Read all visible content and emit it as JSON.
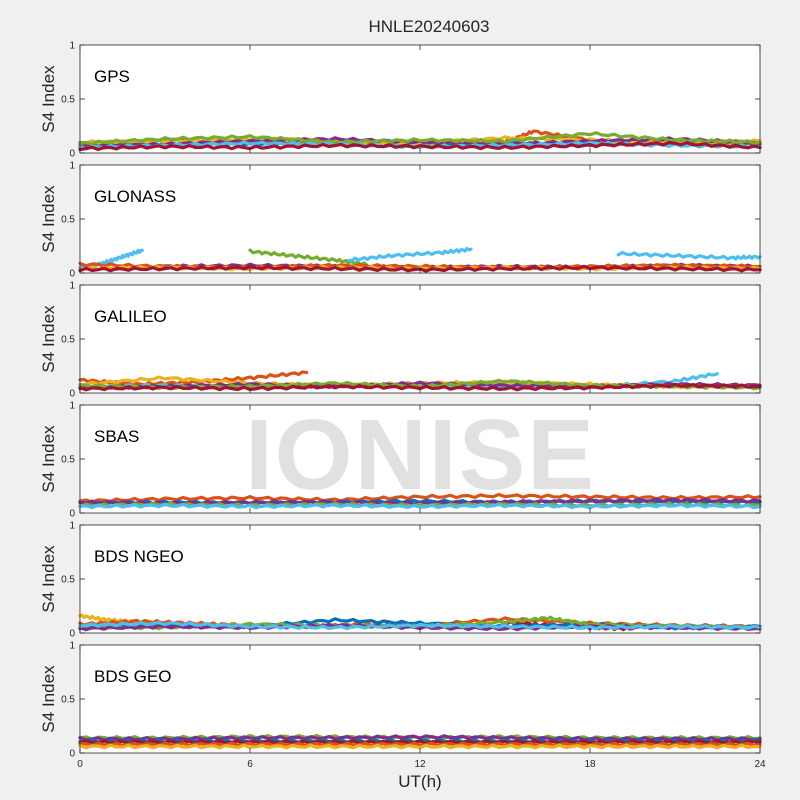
{
  "title": "HNLE20240603",
  "watermark": "IONISE",
  "chart_data": {
    "type": "line",
    "xlabel": "UT(h)",
    "ylabel": "S4 Index",
    "xlim": [
      0,
      24
    ],
    "ylim": [
      0,
      1
    ],
    "xticks": [
      "0",
      "6",
      "12",
      "18",
      "24"
    ],
    "yticks": [
      "0",
      "0.5",
      "1"
    ],
    "grid": false,
    "panels": [
      {
        "label": "GPS",
        "series": [
          {
            "color": "#0072bd",
            "x": [
              0,
              3,
              6,
              9,
              12,
              15,
              18,
              21,
              24
            ],
            "y": [
              0.07,
              0.09,
              0.08,
              0.1,
              0.07,
              0.09,
              0.08,
              0.1,
              0.08
            ]
          },
          {
            "color": "#d95319",
            "x": [
              0,
              3,
              6,
              9,
              12,
              15,
              16,
              18,
              21,
              24
            ],
            "y": [
              0.08,
              0.12,
              0.1,
              0.09,
              0.11,
              0.1,
              0.2,
              0.12,
              0.09,
              0.1
            ]
          },
          {
            "color": "#edb120",
            "x": [
              0,
              3,
              6,
              9,
              12,
              15,
              18,
              21,
              24
            ],
            "y": [
              0.1,
              0.11,
              0.13,
              0.12,
              0.09,
              0.14,
              0.12,
              0.1,
              0.11
            ]
          },
          {
            "color": "#7e2f8e",
            "x": [
              0,
              3,
              6,
              9,
              12,
              15,
              18,
              21,
              24
            ],
            "y": [
              0.06,
              0.08,
              0.11,
              0.13,
              0.1,
              0.08,
              0.11,
              0.13,
              0.09
            ]
          },
          {
            "color": "#77ac30",
            "x": [
              0,
              3,
              6,
              9,
              12,
              15,
              18,
              21,
              24
            ],
            "y": [
              0.09,
              0.13,
              0.15,
              0.1,
              0.12,
              0.11,
              0.18,
              0.12,
              0.1
            ]
          },
          {
            "color": "#4dbeee",
            "x": [
              0,
              3,
              6,
              9,
              12,
              15,
              18,
              21,
              24
            ],
            "y": [
              0.05,
              0.07,
              0.09,
              0.08,
              0.06,
              0.07,
              0.09,
              0.07,
              0.06
            ]
          },
          {
            "color": "#a2142f",
            "x": [
              0,
              3,
              6,
              9,
              12,
              15,
              18,
              21,
              24
            ],
            "y": [
              0.04,
              0.06,
              0.05,
              0.07,
              0.06,
              0.05,
              0.07,
              0.09,
              0.05
            ]
          }
        ]
      },
      {
        "label": "GLONASS",
        "series": [
          {
            "color": "#4dbeee",
            "x": [
              0,
              0.8,
              1.5,
              2.2
            ],
            "y": [
              0.05,
              0.09,
              0.15,
              0.21
            ]
          },
          {
            "color": "#77ac30",
            "x": [
              6,
              7.5,
              9,
              10.1
            ],
            "y": [
              0.2,
              0.16,
              0.12,
              0.08
            ]
          },
          {
            "color": "#4dbeee",
            "x": [
              9.5,
              11,
              12.8,
              13.8
            ],
            "y": [
              0.12,
              0.16,
              0.19,
              0.22
            ]
          },
          {
            "color": "#4dbeee",
            "x": [
              19,
              21,
              23,
              24
            ],
            "y": [
              0.18,
              0.16,
              0.14,
              0.15
            ]
          },
          {
            "color": "#7e2f8e",
            "x": [
              3,
              6,
              9,
              12,
              15,
              18,
              21,
              24
            ],
            "y": [
              0.06,
              0.07,
              0.06,
              0.05,
              0.06,
              0.05,
              0.07,
              0.06
            ]
          },
          {
            "color": "#d95319",
            "x": [
              0,
              3,
              6,
              9,
              12,
              15,
              18,
              21,
              24
            ],
            "y": [
              0.08,
              0.06,
              0.05,
              0.07,
              0.06,
              0.05,
              0.06,
              0.07,
              0.06
            ]
          },
          {
            "color": "#edb120",
            "x": [
              0,
              3,
              6,
              9,
              12,
              15,
              18,
              21,
              24
            ],
            "y": [
              0.04,
              0.05,
              0.04,
              0.05,
              0.04,
              0.05,
              0.04,
              0.05,
              0.04
            ]
          },
          {
            "color": "#a2142f",
            "x": [
              0,
              3,
              6,
              9,
              12,
              15,
              18,
              21,
              24
            ],
            "y": [
              0.03,
              0.04,
              0.05,
              0.04,
              0.03,
              0.04,
              0.05,
              0.04,
              0.03
            ]
          }
        ]
      },
      {
        "label": "GALILEO",
        "series": [
          {
            "color": "#d95319",
            "x": [
              0,
              2,
              4,
              6,
              8
            ],
            "y": [
              0.12,
              0.08,
              0.1,
              0.14,
              0.19
            ]
          },
          {
            "color": "#4dbeee",
            "x": [
              0,
              3,
              6,
              9,
              12,
              15,
              18,
              21,
              22.5
            ],
            "y": [
              0.06,
              0.07,
              0.05,
              0.06,
              0.08,
              0.06,
              0.05,
              0.11,
              0.18
            ]
          },
          {
            "color": "#edb120",
            "x": [
              0,
              3,
              6,
              9,
              12,
              15,
              18,
              21,
              24
            ],
            "y": [
              0.08,
              0.14,
              0.09,
              0.07,
              0.09,
              0.1,
              0.08,
              0.06,
              0.07
            ]
          },
          {
            "color": "#7e2f8e",
            "x": [
              0,
              3,
              6,
              9,
              12,
              15,
              18,
              21,
              24
            ],
            "y": [
              0.05,
              0.06,
              0.08,
              0.06,
              0.09,
              0.07,
              0.06,
              0.08,
              0.07
            ]
          },
          {
            "color": "#77ac30",
            "x": [
              0,
              3,
              6,
              9,
              12,
              15,
              18,
              21,
              24
            ],
            "y": [
              0.07,
              0.05,
              0.06,
              0.09,
              0.06,
              0.11,
              0.07,
              0.06,
              0.05
            ]
          },
          {
            "color": "#a2142f",
            "x": [
              0,
              3,
              6,
              9,
              12,
              15,
              18,
              21,
              24
            ],
            "y": [
              0.04,
              0.05,
              0.04,
              0.06,
              0.05,
              0.04,
              0.05,
              0.07,
              0.06
            ]
          }
        ]
      },
      {
        "label": "SBAS",
        "series": [
          {
            "color": "#d95319",
            "x": [
              0,
              3,
              6,
              9,
              12,
              15,
              18,
              21,
              24
            ],
            "y": [
              0.11,
              0.13,
              0.14,
              0.12,
              0.15,
              0.16,
              0.15,
              0.14,
              0.15
            ]
          },
          {
            "color": "#0072bd",
            "x": [
              0,
              3,
              6,
              9,
              12,
              15,
              18,
              21,
              24
            ],
            "y": [
              0.09,
              0.1,
              0.09,
              0.1,
              0.11,
              0.1,
              0.11,
              0.1,
              0.1
            ]
          },
          {
            "color": "#7e2f8e",
            "x": [
              0,
              3,
              6,
              9,
              12,
              15,
              18,
              21,
              24
            ],
            "y": [
              0.1,
              0.09,
              0.1,
              0.1,
              0.09,
              0.1,
              0.11,
              0.12,
              0.11
            ]
          },
          {
            "color": "#77ac30",
            "x": [
              0,
              3,
              6,
              9,
              12,
              15,
              18,
              21,
              24
            ],
            "y": [
              0.07,
              0.08,
              0.07,
              0.08,
              0.07,
              0.08,
              0.07,
              0.08,
              0.07
            ]
          },
          {
            "color": "#4dbeee",
            "x": [
              0,
              3,
              6,
              9,
              12,
              15,
              18,
              21,
              24
            ],
            "y": [
              0.06,
              0.07,
              0.06,
              0.07,
              0.06,
              0.07,
              0.06,
              0.07,
              0.06
            ]
          }
        ]
      },
      {
        "label": "BDS NGEO",
        "series": [
          {
            "color": "#edb120",
            "x": [
              0,
              1,
              2,
              3,
              4.5
            ],
            "y": [
              0.16,
              0.12,
              0.1,
              0.08,
              0.06
            ]
          },
          {
            "color": "#d95319",
            "x": [
              0,
              2,
              4,
              6,
              8,
              10,
              12,
              15,
              18,
              21,
              24
            ],
            "y": [
              0.08,
              0.11,
              0.09,
              0.07,
              0.06,
              0.08,
              0.07,
              0.13,
              0.09,
              0.07,
              0.06
            ]
          },
          {
            "color": "#a2142f",
            "x": [
              15,
              16.5,
              18,
              19.5
            ],
            "y": [
              0.1,
              0.07,
              0.05,
              0.04
            ]
          },
          {
            "color": "#0072bd",
            "x": [
              0,
              3,
              6,
              9,
              12,
              15,
              18,
              21,
              24
            ],
            "y": [
              0.05,
              0.07,
              0.06,
              0.12,
              0.09,
              0.06,
              0.08,
              0.05,
              0.06
            ]
          },
          {
            "color": "#77ac30",
            "x": [
              0,
              3,
              6,
              9,
              12,
              15,
              16.5,
              18,
              21,
              24
            ],
            "y": [
              0.06,
              0.05,
              0.08,
              0.07,
              0.06,
              0.1,
              0.14,
              0.08,
              0.06,
              0.05
            ]
          },
          {
            "color": "#7e2f8e",
            "x": [
              0,
              3,
              6,
              9,
              12,
              15,
              18,
              21,
              24
            ],
            "y": [
              0.04,
              0.06,
              0.05,
              0.07,
              0.05,
              0.04,
              0.06,
              0.05,
              0.04
            ]
          },
          {
            "color": "#4dbeee",
            "x": [
              0,
              3,
              6,
              9,
              12,
              15,
              18,
              21,
              24
            ],
            "y": [
              0.07,
              0.09,
              0.06,
              0.05,
              0.07,
              0.06,
              0.05,
              0.06,
              0.05
            ]
          }
        ]
      },
      {
        "label": "BDS GEO",
        "series": [
          {
            "color": "#77ac30",
            "x": [
              0,
              3,
              6,
              9,
              12,
              15,
              18,
              21,
              24
            ],
            "y": [
              0.14,
              0.14,
              0.15,
              0.15,
              0.14,
              0.15,
              0.14,
              0.14,
              0.14
            ]
          },
          {
            "color": "#7e2f8e",
            "x": [
              0,
              3,
              6,
              9,
              12,
              15,
              18,
              21,
              24
            ],
            "y": [
              0.13,
              0.13,
              0.14,
              0.14,
              0.15,
              0.14,
              0.13,
              0.13,
              0.13
            ]
          },
          {
            "color": "#0072bd",
            "x": [
              0,
              3,
              6,
              9,
              12,
              15,
              18,
              21,
              24
            ],
            "y": [
              0.11,
              0.11,
              0.11,
              0.11,
              0.11,
              0.11,
              0.11,
              0.11,
              0.11
            ]
          },
          {
            "color": "#a2142f",
            "x": [
              0,
              3,
              6,
              9,
              12,
              15,
              18,
              21,
              24
            ],
            "y": [
              0.1,
              0.1,
              0.1,
              0.1,
              0.1,
              0.1,
              0.1,
              0.1,
              0.1
            ]
          },
          {
            "color": "#d95319",
            "x": [
              0,
              3,
              6,
              9,
              12,
              15,
              18,
              21,
              24
            ],
            "y": [
              0.08,
              0.08,
              0.08,
              0.08,
              0.08,
              0.08,
              0.08,
              0.08,
              0.08
            ]
          },
          {
            "color": "#edb120",
            "x": [
              0,
              3,
              6,
              9,
              12,
              15,
              18,
              21,
              24
            ],
            "y": [
              0.06,
              0.06,
              0.06,
              0.06,
              0.06,
              0.06,
              0.06,
              0.06,
              0.06
            ]
          }
        ]
      }
    ]
  }
}
